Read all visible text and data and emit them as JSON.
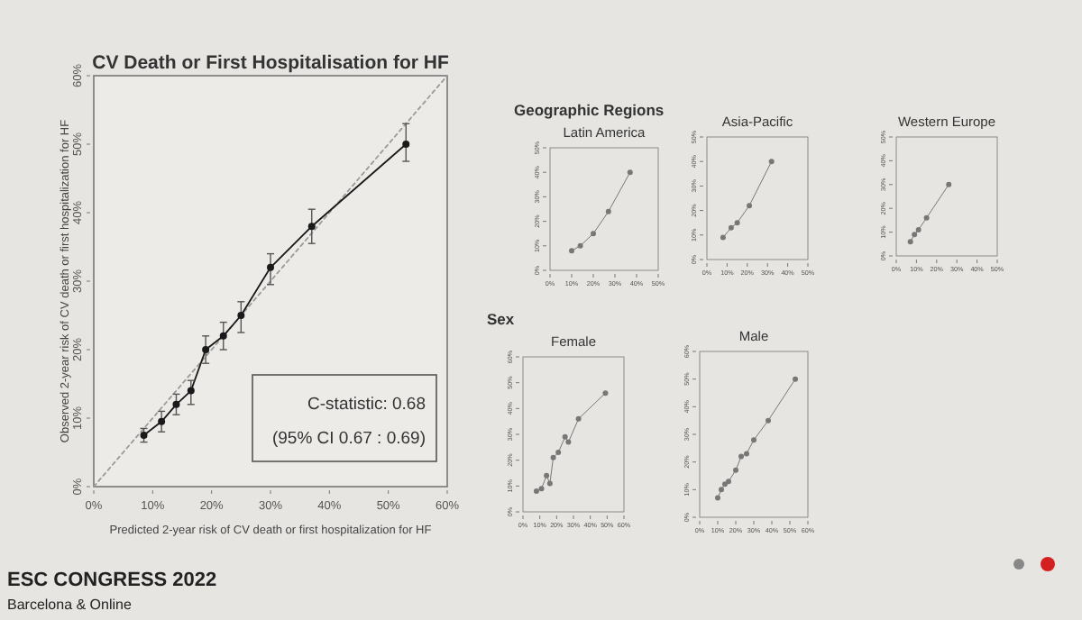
{
  "chart_data": [
    {
      "type": "line",
      "title": "CV Death or First Hospitalisation for HF",
      "xlabel": "Predicted 2-year risk of CV death or first hospitalization for HF",
      "ylabel": "Observed 2-year risk of CV death or first hospitalization for HF",
      "xlim": [
        0,
        60
      ],
      "ylim": [
        0,
        60
      ],
      "xticks": [
        {
          "value": 0,
          "label": "0%"
        },
        {
          "value": 10,
          "label": "10%"
        },
        {
          "value": 20,
          "label": "20%"
        },
        {
          "value": 30,
          "label": "30%"
        },
        {
          "value": 40,
          "label": "40%"
        },
        {
          "value": 50,
          "label": "50%"
        },
        {
          "value": 60,
          "label": "60%"
        }
      ],
      "yticks": [
        {
          "value": 0,
          "label": "0%"
        },
        {
          "value": 10,
          "label": "10%"
        },
        {
          "value": 20,
          "label": "20%"
        },
        {
          "value": 30,
          "label": "30%"
        },
        {
          "value": 40,
          "label": "40%"
        },
        {
          "value": 50,
          "label": "50%"
        },
        {
          "value": 60,
          "label": "60%"
        }
      ],
      "series": [
        {
          "x": [
            0,
            60
          ],
          "values": [
            0,
            60
          ],
          "color": "#9a9a9a",
          "line_style": "dotted",
          "marker": "none"
        },
        {
          "x": [
            8.5,
            11.5,
            14,
            16.5,
            19,
            22,
            25,
            30,
            37,
            53
          ],
          "values": [
            7.5,
            9.5,
            12,
            14,
            20,
            22,
            25,
            32,
            38,
            50
          ],
          "color": "#1a1a1a",
          "line_style": "solid",
          "marker": "circle",
          "errors": [
            [
              6.5,
              8.5
            ],
            [
              8,
              11
            ],
            [
              10.5,
              13.5
            ],
            [
              12,
              15.5
            ],
            [
              18,
              22
            ],
            [
              20,
              24
            ],
            [
              22.5,
              27
            ],
            [
              29.5,
              34
            ],
            [
              35.5,
              40.5
            ],
            [
              47.5,
              53
            ]
          ]
        }
      ],
      "annotations": [
        "C-statistic: 0.68",
        "(95% CI 0.67 : 0.69)",
        "ESC CONGRESS 2022",
        "Barcelona & Online"
      ]
    },
    {
      "type": "line",
      "title": "Latin America",
      "annotations": [
        "Geographic Regions"
      ],
      "xlim": [
        0,
        50
      ],
      "ylim": [
        0,
        50
      ],
      "xticks": [
        {
          "value": 0,
          "label": "0%"
        },
        {
          "value": 10,
          "label": "10%"
        },
        {
          "value": 20,
          "label": "20%"
        },
        {
          "value": 30,
          "label": "30%"
        },
        {
          "value": 40,
          "label": "40%"
        },
        {
          "value": 50,
          "label": "50%"
        }
      ],
      "yticks": [
        {
          "value": 0,
          "label": "0%"
        },
        {
          "value": 10,
          "label": "10%"
        },
        {
          "value": 20,
          "label": "20%"
        },
        {
          "value": 30,
          "label": "30%"
        },
        {
          "value": 40,
          "label": "40%"
        },
        {
          "value": 50,
          "label": "50%"
        }
      ],
      "series": [
        {
          "x": [
            10,
            14,
            20,
            27,
            37
          ],
          "values": [
            8,
            10,
            15,
            24,
            40
          ],
          "color": "#777777",
          "line_style": "solid",
          "marker": "circle"
        }
      ]
    },
    {
      "type": "line",
      "title": "Asia-Pacific",
      "xlim": [
        0,
        50
      ],
      "ylim": [
        0,
        50
      ],
      "xticks": [
        {
          "value": 0,
          "label": "0%"
        },
        {
          "value": 10,
          "label": "10%"
        },
        {
          "value": 20,
          "label": "20%"
        },
        {
          "value": 30,
          "label": "30%"
        },
        {
          "value": 40,
          "label": "40%"
        },
        {
          "value": 50,
          "label": "50%"
        }
      ],
      "yticks": [
        {
          "value": 0,
          "label": "0%"
        },
        {
          "value": 10,
          "label": "10%"
        },
        {
          "value": 20,
          "label": "20%"
        },
        {
          "value": 30,
          "label": "30%"
        },
        {
          "value": 40,
          "label": "40%"
        },
        {
          "value": 50,
          "label": "50%"
        }
      ],
      "series": [
        {
          "x": [
            8,
            12,
            15,
            21,
            32
          ],
          "values": [
            9,
            13,
            15,
            22,
            40
          ],
          "color": "#777777",
          "line_style": "solid",
          "marker": "circle"
        }
      ]
    },
    {
      "type": "line",
      "title": "Western Europe",
      "xlim": [
        0,
        50
      ],
      "ylim": [
        0,
        50
      ],
      "xticks": [
        {
          "value": 0,
          "label": "0%"
        },
        {
          "value": 10,
          "label": "10%"
        },
        {
          "value": 20,
          "label": "20%"
        },
        {
          "value": 30,
          "label": "30%"
        },
        {
          "value": 40,
          "label": "40%"
        },
        {
          "value": 50,
          "label": "50%"
        }
      ],
      "yticks": [
        {
          "value": 0,
          "label": "0%"
        },
        {
          "value": 10,
          "label": "10%"
        },
        {
          "value": 20,
          "label": "20%"
        },
        {
          "value": 30,
          "label": "30%"
        },
        {
          "value": 40,
          "label": "40%"
        },
        {
          "value": 50,
          "label": "50%"
        }
      ],
      "series": [
        {
          "x": [
            7,
            9,
            11,
            15,
            26
          ],
          "values": [
            6,
            9,
            11,
            16,
            30
          ],
          "color": "#777777",
          "line_style": "solid",
          "marker": "circle"
        }
      ]
    },
    {
      "type": "line",
      "title": "Female",
      "annotations": [
        "Sex"
      ],
      "xlim": [
        0,
        60
      ],
      "ylim": [
        0,
        60
      ],
      "xticks": [
        {
          "value": 0,
          "label": "0%"
        },
        {
          "value": 10,
          "label": "10%"
        },
        {
          "value": 20,
          "label": "20%"
        },
        {
          "value": 30,
          "label": "30%"
        },
        {
          "value": 40,
          "label": "40%"
        },
        {
          "value": 50,
          "label": "50%"
        },
        {
          "value": 60,
          "label": "60%"
        }
      ],
      "yticks": [
        {
          "value": 0,
          "label": "0%"
        },
        {
          "value": 10,
          "label": "10%"
        },
        {
          "value": 20,
          "label": "20%"
        },
        {
          "value": 30,
          "label": "30%"
        },
        {
          "value": 40,
          "label": "40%"
        },
        {
          "value": 50,
          "label": "50%"
        },
        {
          "value": 60,
          "label": "60%"
        }
      ],
      "series": [
        {
          "x": [
            8,
            11,
            14,
            16,
            18,
            21,
            25,
            27,
            33,
            49
          ],
          "values": [
            8,
            9,
            14,
            11,
            21,
            23,
            29,
            27,
            36,
            46
          ],
          "color": "#777777",
          "line_style": "solid",
          "marker": "circle"
        }
      ]
    },
    {
      "type": "line",
      "title": "Male",
      "xlim": [
        0,
        60
      ],
      "ylim": [
        0,
        60
      ],
      "xticks": [
        {
          "value": 0,
          "label": "0%"
        },
        {
          "value": 10,
          "label": "10%"
        },
        {
          "value": 20,
          "label": "20%"
        },
        {
          "value": 30,
          "label": "30%"
        },
        {
          "value": 40,
          "label": "40%"
        },
        {
          "value": 50,
          "label": "50%"
        },
        {
          "value": 60,
          "label": "60%"
        }
      ],
      "yticks": [
        {
          "value": 0,
          "label": "0%"
        },
        {
          "value": 10,
          "label": "10%"
        },
        {
          "value": 20,
          "label": "20%"
        },
        {
          "value": 30,
          "label": "30%"
        },
        {
          "value": 40,
          "label": "40%"
        },
        {
          "value": 50,
          "label": "50%"
        },
        {
          "value": 60,
          "label": "60%"
        }
      ],
      "series": [
        {
          "x": [
            10,
            12,
            14,
            16,
            20,
            23,
            26,
            30,
            38,
            53
          ],
          "values": [
            7,
            10,
            12,
            13,
            17,
            22,
            23,
            28,
            35,
            50
          ],
          "color": "#777777",
          "line_style": "solid",
          "marker": "circle"
        }
      ]
    }
  ]
}
